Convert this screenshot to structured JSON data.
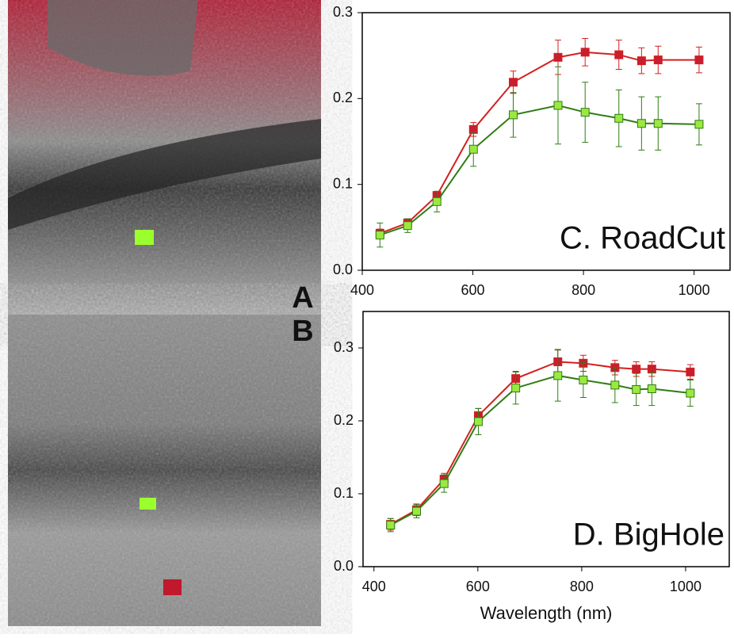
{
  "panel_labels": [
    "A",
    "B"
  ],
  "chart_data": [
    {
      "type": "line",
      "title": "C. RoadCut",
      "x": [
        432,
        482,
        535,
        601,
        673,
        754,
        803,
        864,
        905,
        935,
        1009
      ],
      "xlim": [
        400,
        1065
      ],
      "xticks": [
        400,
        600,
        800,
        1000
      ],
      "ylim": [
        0,
        0.3
      ],
      "yticks": [
        {
          "value": 0,
          "label": "0.0"
        },
        0.1,
        0.2,
        0.3
      ],
      "series": [
        {
          "color": "#d42020",
          "marker_color": "#c81e2e",
          "values": [
            0.043,
            0.055,
            0.087,
            0.164,
            0.219,
            0.248,
            0.254,
            0.251,
            0.244,
            0.245,
            0.245
          ],
          "errors": [
            0.005,
            0.005,
            0.005,
            0.008,
            0.013,
            0.02,
            0.016,
            0.017,
            0.015,
            0.016,
            0.015
          ]
        },
        {
          "color": "#2f7d14",
          "marker_color": "#9be842",
          "values": [
            0.041,
            0.052,
            0.08,
            0.141,
            0.181,
            0.192,
            0.184,
            0.177,
            0.171,
            0.171,
            0.17
          ],
          "errors": [
            0.014,
            0.008,
            0.012,
            0.02,
            0.026,
            0.045,
            0.035,
            0.033,
            0.031,
            0.031,
            0.024
          ]
        }
      ]
    },
    {
      "type": "line",
      "title": "D. BigHole",
      "xlabel": "Wavelength (nm)",
      "x": [
        432,
        482,
        535,
        601,
        673,
        754,
        803,
        864,
        905,
        935,
        1009
      ],
      "xlim": [
        379,
        1084
      ],
      "xticks": [
        400,
        600,
        800,
        1000
      ],
      "ylim": [
        0,
        0.35
      ],
      "yticks": [
        {
          "value": 0,
          "label": "0.0"
        },
        0.1,
        0.2,
        0.3
      ],
      "series": [
        {
          "color": "#d42020",
          "marker_color": "#c81e2e",
          "values": [
            0.058,
            0.078,
            0.12,
            0.207,
            0.258,
            0.281,
            0.279,
            0.273,
            0.271,
            0.271,
            0.267
          ],
          "errors": [
            0.008,
            0.008,
            0.008,
            0.01,
            0.01,
            0.017,
            0.011,
            0.01,
            0.01,
            0.01,
            0.01
          ]
        },
        {
          "color": "#2f7d14",
          "marker_color": "#9be842",
          "values": [
            0.057,
            0.076,
            0.114,
            0.199,
            0.245,
            0.262,
            0.256,
            0.249,
            0.243,
            0.244,
            0.238
          ],
          "errors": [
            0.009,
            0.009,
            0.012,
            0.018,
            0.022,
            0.035,
            0.024,
            0.024,
            0.022,
            0.023,
            0.018
          ]
        }
      ]
    }
  ]
}
